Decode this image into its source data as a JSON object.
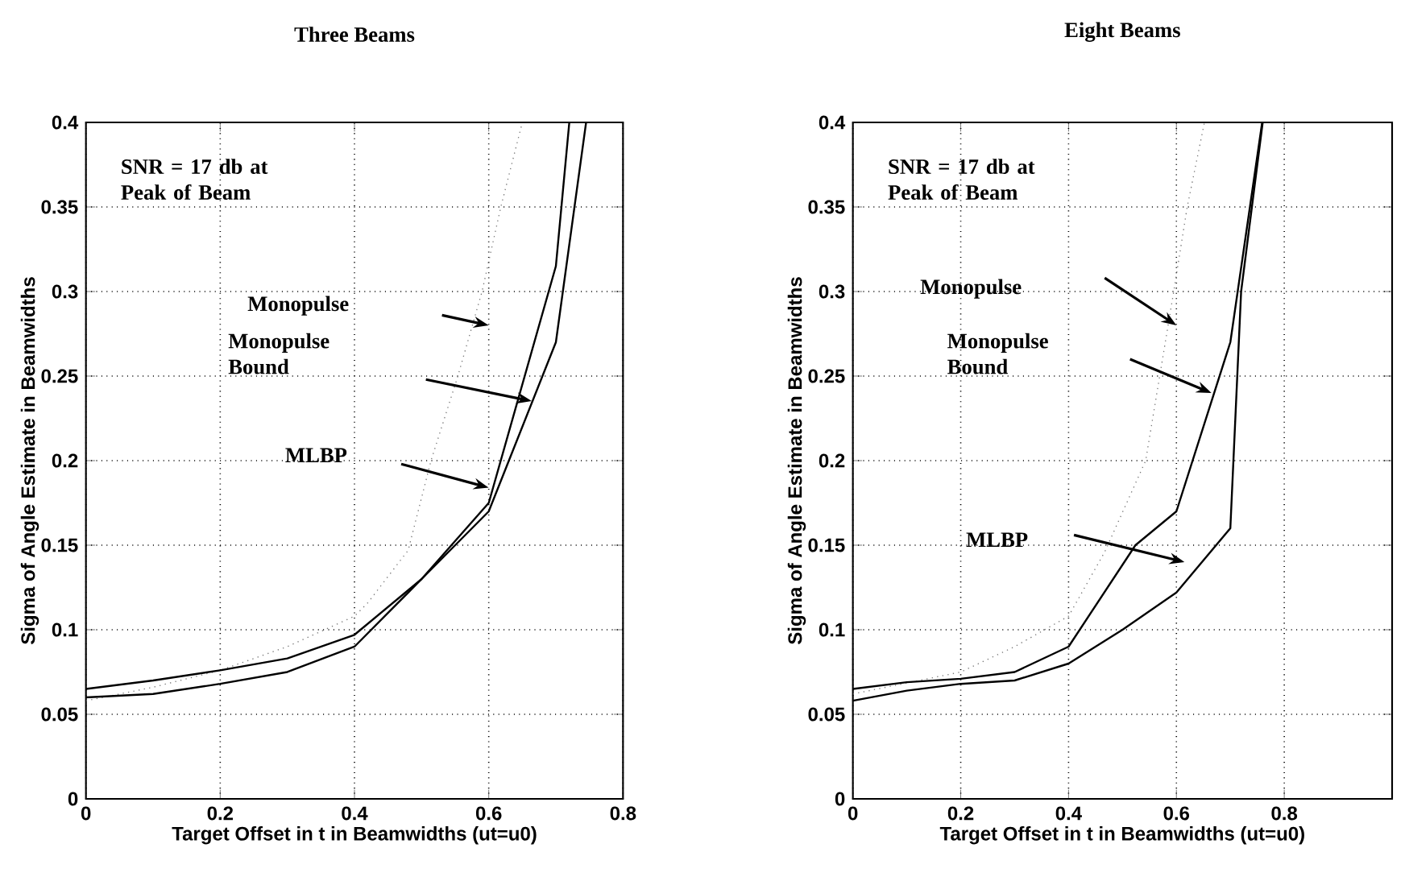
{
  "chart_data": [
    {
      "type": "line",
      "title": "Three Beams",
      "xlabel": "Target Offset in t in Beamwidths (ut=u0)",
      "ylabel": "Sigma of Angle Estimate in Beamwidths",
      "xlim": [
        0,
        0.8
      ],
      "ylim": [
        0,
        0.4
      ],
      "xticks": [
        0,
        0.2,
        0.4,
        0.6,
        0.8
      ],
      "yticks": [
        0,
        0.05,
        0.1,
        0.15,
        0.2,
        0.25,
        0.3,
        0.35,
        0.4
      ],
      "grid": true,
      "series": [
        {
          "color": "#777777",
          "line_style": "dotted",
          "x": [
            0,
            0.1,
            0.2,
            0.3,
            0.4,
            0.42,
            0.48,
            0.514,
            0.554,
            0.59,
            0.618,
            0.65
          ],
          "values": [
            0.058,
            0.066,
            0.076,
            0.09,
            0.108,
            0.116,
            0.147,
            0.2,
            0.25,
            0.3,
            0.35,
            0.4
          ]
        },
        {
          "color": "#000000",
          "line_style": "solid",
          "x": [
            0,
            0.1,
            0.2,
            0.3,
            0.4,
            0.5,
            0.6,
            0.7,
            0.72
          ],
          "values": [
            0.065,
            0.07,
            0.076,
            0.083,
            0.097,
            0.13,
            0.175,
            0.315,
            0.4
          ]
        },
        {
          "color": "#000000",
          "line_style": "solid",
          "x": [
            0,
            0.1,
            0.2,
            0.3,
            0.4,
            0.5,
            0.6,
            0.7,
            0.745
          ],
          "values": [
            0.06,
            0.062,
            0.068,
            0.075,
            0.09,
            0.13,
            0.17,
            0.27,
            0.4
          ]
        }
      ],
      "annotations": [
        "SNR = 17 db at Peak of Beam",
        "Monopulse",
        "Monopulse Bound",
        "MLBP"
      ]
    },
    {
      "type": "line",
      "title": "Eight Beams",
      "xlabel": "Target Offset in t in Beamwidths (ut=u0)",
      "ylabel": "Sigma of Angle Estimate in Beamwidths",
      "xlim": [
        0,
        1
      ],
      "ylim": [
        0,
        0.4
      ],
      "xticks": [
        0,
        0.2,
        0.4,
        0.6,
        0.8
      ],
      "yticks": [
        0,
        0.05,
        0.1,
        0.15,
        0.2,
        0.25,
        0.3,
        0.35,
        0.4
      ],
      "grid": true,
      "series": [
        {
          "color": "#777777",
          "line_style": "dotted",
          "x": [
            0,
            0.2,
            0.3,
            0.4,
            0.467,
            0.543,
            0.595,
            0.62,
            0.652
          ],
          "values": [
            0.062,
            0.075,
            0.09,
            0.108,
            0.146,
            0.2,
            0.3,
            0.35,
            0.4
          ]
        },
        {
          "color": "#000000",
          "line_style": "solid",
          "x": [
            0,
            0.1,
            0.2,
            0.3,
            0.4,
            0.524,
            0.6,
            0.7,
            0.759
          ],
          "values": [
            0.065,
            0.069,
            0.071,
            0.075,
            0.09,
            0.15,
            0.17,
            0.27,
            0.4
          ]
        },
        {
          "color": "#000000",
          "line_style": "solid",
          "x": [
            0,
            0.1,
            0.2,
            0.3,
            0.4,
            0.5,
            0.6,
            0.7,
            0.72,
            0.76
          ],
          "values": [
            0.058,
            0.064,
            0.068,
            0.07,
            0.08,
            0.1,
            0.122,
            0.16,
            0.3,
            0.4
          ]
        }
      ],
      "annotations": [
        "SNR = 17 db at Peak of Beam",
        "Monopulse",
        "Monopulse Bound",
        "MLBP"
      ]
    }
  ]
}
